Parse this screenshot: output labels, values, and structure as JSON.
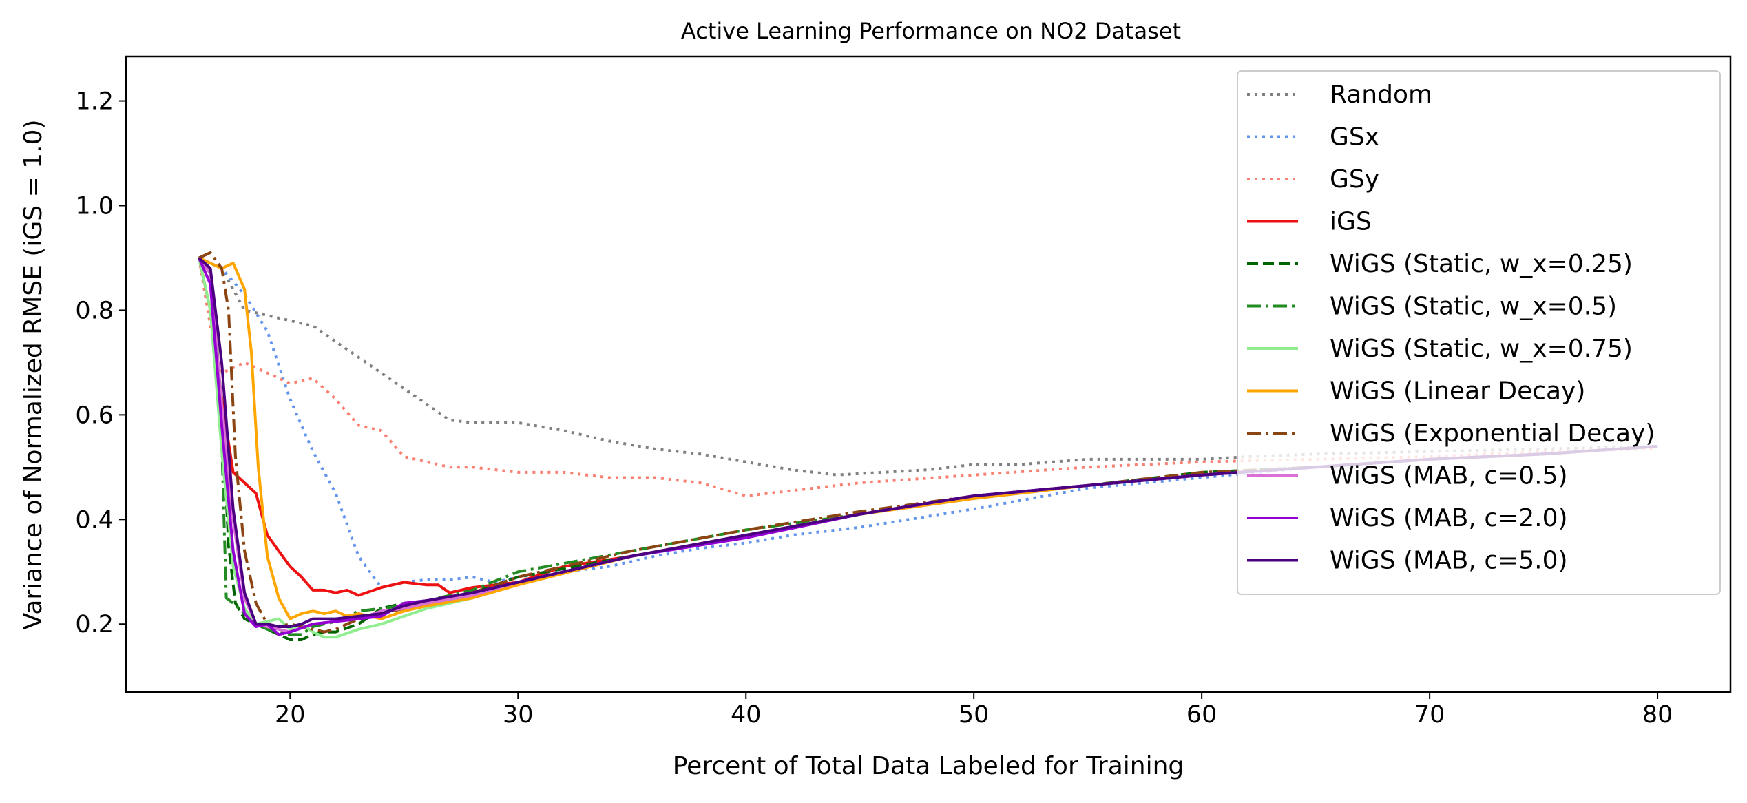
{
  "chart_data": {
    "type": "line",
    "title": "Active Learning Performance on NO2 Dataset",
    "xlabel": "Percent of Total Data Labeled for Training",
    "ylabel": "Variance of Normalized RMSE (iGS = 1.0)",
    "xlim": [
      12.8,
      83.2
    ],
    "ylim": [
      0.07,
      1.285
    ],
    "xticks": [
      20,
      30,
      40,
      50,
      60,
      70,
      80
    ],
    "yticks": [
      0.2,
      0.4,
      0.6,
      0.8,
      1.0,
      1.2
    ],
    "xtick_labels": [
      "20",
      "30",
      "40",
      "50",
      "60",
      "70",
      "80"
    ],
    "ytick_labels": [
      "0.2",
      "0.4",
      "0.6",
      "0.8",
      "1.0",
      "1.2"
    ],
    "grid": false,
    "legend_position": "upper right",
    "series": [
      {
        "name": "Random",
        "color": "#808080",
        "dash": "dotted",
        "x": [
          16,
          17,
          18,
          19,
          20,
          21,
          22,
          23,
          24,
          25,
          26,
          27,
          28,
          30,
          32,
          34,
          36,
          38,
          40,
          42,
          44,
          46,
          48,
          50,
          52,
          55,
          58,
          60,
          62,
          65,
          70,
          75,
          80
        ],
        "y": [
          0.9,
          0.88,
          0.8,
          0.79,
          0.78,
          0.77,
          0.74,
          0.71,
          0.68,
          0.65,
          0.62,
          0.59,
          0.585,
          0.585,
          0.57,
          0.55,
          0.535,
          0.525,
          0.51,
          0.495,
          0.485,
          0.49,
          0.495,
          0.505,
          0.505,
          0.515,
          0.515,
          0.515,
          0.52,
          0.525,
          0.53,
          0.535,
          0.54
        ]
      },
      {
        "name": "GSx",
        "color": "#6495ED",
        "dash": "dotted",
        "x": [
          16,
          17,
          18,
          19,
          20,
          21,
          22,
          23,
          24,
          25,
          26,
          27,
          28,
          29,
          30,
          32,
          34,
          36,
          38,
          40,
          42,
          45,
          50,
          55,
          60,
          65,
          70,
          75,
          80
        ],
        "y": [
          0.9,
          0.88,
          0.83,
          0.76,
          0.63,
          0.53,
          0.45,
          0.33,
          0.27,
          0.28,
          0.285,
          0.285,
          0.29,
          0.28,
          0.29,
          0.3,
          0.31,
          0.33,
          0.345,
          0.355,
          0.37,
          0.385,
          0.42,
          0.46,
          0.48,
          0.5,
          0.515,
          0.525,
          0.54
        ]
      },
      {
        "name": "GSy",
        "color": "#FA8072",
        "dash": "dotted",
        "x": [
          16,
          16.5,
          17,
          18,
          19,
          20,
          21,
          22,
          23,
          24,
          25,
          26,
          27,
          28,
          30,
          32,
          34,
          36,
          38,
          40,
          42,
          45,
          50,
          55,
          60,
          65,
          70,
          75,
          80
        ],
        "y": [
          0.9,
          0.77,
          0.68,
          0.7,
          0.68,
          0.66,
          0.67,
          0.63,
          0.58,
          0.57,
          0.52,
          0.51,
          0.5,
          0.5,
          0.49,
          0.49,
          0.48,
          0.48,
          0.47,
          0.445,
          0.455,
          0.47,
          0.485,
          0.5,
          0.51,
          0.515,
          0.52,
          0.53,
          0.535
        ]
      },
      {
        "name": "iGS",
        "color": "#EE1111",
        "dash": "solid",
        "x": [
          16,
          16.5,
          17,
          17.5,
          18,
          18.5,
          19,
          19.5,
          20,
          20.5,
          21,
          21.5,
          22,
          22.5,
          23,
          24,
          25,
          26,
          26.5,
          27,
          28,
          30,
          32,
          35,
          40,
          45,
          50,
          55,
          60,
          65,
          70,
          75,
          80
        ],
        "y": [
          0.9,
          0.8,
          0.63,
          0.49,
          0.47,
          0.45,
          0.37,
          0.34,
          0.31,
          0.29,
          0.265,
          0.265,
          0.26,
          0.265,
          0.255,
          0.27,
          0.28,
          0.275,
          0.275,
          0.26,
          0.27,
          0.28,
          0.31,
          0.33,
          0.37,
          0.41,
          0.44,
          0.465,
          0.485,
          0.5,
          0.515,
          0.525,
          0.54
        ]
      },
      {
        "name": "WiGS (Static, w_x=0.25)",
        "color": "#006400",
        "dash": "dashed",
        "x": [
          16,
          16.5,
          17,
          17.3,
          17.6,
          18,
          18.5,
          19,
          19.5,
          20,
          20.5,
          21,
          21.5,
          22,
          23,
          24,
          25,
          26,
          28,
          30,
          35,
          40,
          45,
          50,
          55,
          60,
          65,
          70,
          75,
          80
        ],
        "y": [
          0.9,
          0.88,
          0.62,
          0.35,
          0.24,
          0.21,
          0.2,
          0.19,
          0.18,
          0.17,
          0.17,
          0.18,
          0.185,
          0.185,
          0.2,
          0.23,
          0.24,
          0.245,
          0.26,
          0.29,
          0.33,
          0.37,
          0.41,
          0.445,
          0.465,
          0.49,
          0.5,
          0.515,
          0.525,
          0.54
        ]
      },
      {
        "name": "WiGS (Static, w_x=0.5)",
        "color": "#228B22",
        "dash": "dashdot",
        "x": [
          16,
          16.5,
          17,
          17.2,
          17.5,
          18,
          18.5,
          19,
          20,
          20.5,
          21,
          22,
          23,
          24,
          25,
          26,
          28,
          30,
          35,
          40,
          45,
          50,
          55,
          60,
          65,
          70,
          75,
          80
        ],
        "y": [
          0.9,
          0.88,
          0.55,
          0.25,
          0.24,
          0.22,
          0.2,
          0.19,
          0.18,
          0.18,
          0.195,
          0.205,
          0.225,
          0.23,
          0.235,
          0.245,
          0.265,
          0.3,
          0.34,
          0.38,
          0.41,
          0.445,
          0.465,
          0.485,
          0.5,
          0.515,
          0.525,
          0.54
        ]
      },
      {
        "name": "WiGS (Static, w_x=0.75)",
        "color": "#90EE90",
        "dash": "solid",
        "x": [
          16,
          16.5,
          17,
          17.5,
          18,
          18.5,
          19,
          19.5,
          20,
          20.5,
          21,
          21.5,
          22,
          23,
          24,
          25,
          26,
          28,
          30,
          35,
          40,
          45,
          50,
          55,
          60,
          65,
          70,
          75,
          80
        ],
        "y": [
          0.9,
          0.8,
          0.53,
          0.31,
          0.23,
          0.2,
          0.205,
          0.21,
          0.19,
          0.2,
          0.185,
          0.175,
          0.175,
          0.19,
          0.2,
          0.215,
          0.23,
          0.25,
          0.28,
          0.33,
          0.37,
          0.41,
          0.44,
          0.465,
          0.485,
          0.5,
          0.515,
          0.525,
          0.54
        ]
      },
      {
        "name": "WiGS (Linear Decay)",
        "color": "#FFA500",
        "dash": "solid",
        "x": [
          16,
          16.5,
          17,
          17.5,
          18,
          18.3,
          18.6,
          19,
          19.5,
          20,
          20.5,
          21,
          21.5,
          22,
          22.5,
          23,
          24,
          25,
          26,
          28,
          30,
          35,
          40,
          45,
          50,
          55,
          60,
          65,
          70,
          75,
          80
        ],
        "y": [
          0.9,
          0.89,
          0.88,
          0.89,
          0.84,
          0.72,
          0.5,
          0.33,
          0.25,
          0.21,
          0.22,
          0.225,
          0.22,
          0.225,
          0.215,
          0.22,
          0.21,
          0.225,
          0.235,
          0.25,
          0.275,
          0.33,
          0.37,
          0.41,
          0.44,
          0.465,
          0.485,
          0.5,
          0.515,
          0.525,
          0.54
        ]
      },
      {
        "name": "WiGS (Exponential Decay)",
        "color": "#8B4513",
        "dash": "dashdot",
        "x": [
          16,
          16.5,
          17,
          17.3,
          17.6,
          18,
          18.5,
          19,
          19.5,
          20,
          20.5,
          21,
          21.5,
          22,
          23,
          24,
          25,
          26,
          28,
          30,
          35,
          40,
          45,
          50,
          55,
          60,
          65,
          70,
          75,
          80
        ],
        "y": [
          0.9,
          0.91,
          0.88,
          0.8,
          0.52,
          0.34,
          0.24,
          0.2,
          0.195,
          0.2,
          0.195,
          0.19,
          0.185,
          0.19,
          0.21,
          0.22,
          0.23,
          0.24,
          0.26,
          0.29,
          0.34,
          0.38,
          0.415,
          0.445,
          0.465,
          0.49,
          0.5,
          0.515,
          0.525,
          0.54
        ]
      },
      {
        "name": "WiGS (MAB, c=0.5)",
        "color": "#DA70D6",
        "dash": "solid",
        "x": [
          16,
          16.5,
          17,
          17.5,
          18,
          18.5,
          19,
          19.5,
          20,
          21,
          22,
          23,
          24,
          25,
          26,
          28,
          30,
          35,
          40,
          45,
          50,
          55,
          60,
          65,
          70,
          75,
          80
        ],
        "y": [
          0.9,
          0.87,
          0.62,
          0.4,
          0.25,
          0.2,
          0.195,
          0.19,
          0.185,
          0.2,
          0.205,
          0.21,
          0.225,
          0.23,
          0.24,
          0.255,
          0.28,
          0.33,
          0.37,
          0.41,
          0.445,
          0.465,
          0.485,
          0.5,
          0.515,
          0.525,
          0.54
        ]
      },
      {
        "name": "WiGS (MAB, c=2.0)",
        "color": "#9400D3",
        "dash": "solid",
        "x": [
          16,
          16.5,
          17,
          17.5,
          18,
          18.5,
          19,
          19.5,
          20,
          21,
          22,
          23,
          24,
          25,
          26,
          28,
          30,
          35,
          40,
          45,
          50,
          55,
          60,
          65,
          70,
          75,
          80
        ],
        "y": [
          0.9,
          0.85,
          0.58,
          0.34,
          0.22,
          0.195,
          0.2,
          0.18,
          0.185,
          0.2,
          0.205,
          0.21,
          0.215,
          0.24,
          0.245,
          0.26,
          0.28,
          0.33,
          0.365,
          0.41,
          0.445,
          0.465,
          0.485,
          0.5,
          0.515,
          0.525,
          0.54
        ]
      },
      {
        "name": "WiGS (MAB, c=5.0)",
        "color": "#4B0082",
        "dash": "solid",
        "x": [
          16,
          16.5,
          17,
          17.5,
          18,
          18.5,
          19,
          19.5,
          20,
          20.5,
          21,
          22,
          23,
          24,
          25,
          26,
          28,
          30,
          35,
          40,
          45,
          50,
          55,
          60,
          65,
          70,
          75,
          80
        ],
        "y": [
          0.9,
          0.88,
          0.7,
          0.42,
          0.26,
          0.2,
          0.2,
          0.195,
          0.195,
          0.2,
          0.21,
          0.21,
          0.215,
          0.22,
          0.235,
          0.245,
          0.26,
          0.28,
          0.33,
          0.37,
          0.41,
          0.445,
          0.465,
          0.485,
          0.5,
          0.515,
          0.525,
          0.54
        ]
      }
    ]
  }
}
